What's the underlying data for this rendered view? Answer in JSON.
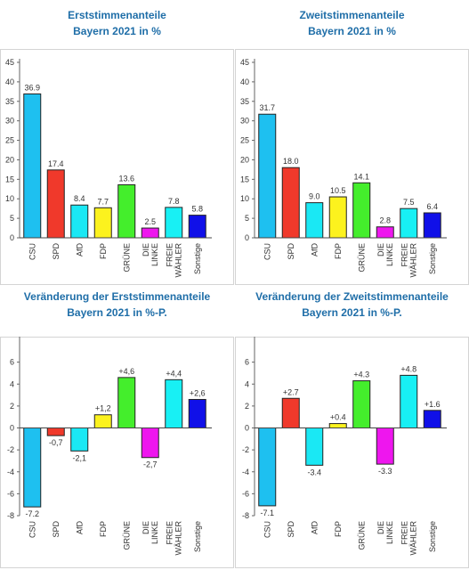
{
  "colors": {
    "title": "#1f6ea8",
    "CSU": "#1ec0f0",
    "SPD": "#f0392b",
    "AfD": "#1ae8f4",
    "FDP": "#fcf21e",
    "GRÜNE": "#44ee2c",
    "DIE LINKE": "#ee16ee",
    "FREIE WÄHLER": "#18f0f4",
    "Sonstige": "#1010e8"
  },
  "chart_data": [
    {
      "type": "bar",
      "title": "Erststimmenanteile",
      "subtitle": "Bayern 2021 in %",
      "categories": [
        "CSU",
        "SPD",
        "AfD",
        "FDP",
        "GRÜNE",
        "DIE LINKE",
        "FREIE WÄHLER",
        "Sonstige"
      ],
      "values": [
        36.9,
        17.4,
        8.4,
        7.7,
        13.6,
        2.5,
        7.8,
        5.8
      ],
      "value_labels": [
        "36.9",
        "17.4",
        "8.4",
        "7.7",
        "13.6",
        "2.5",
        "7.8",
        "5.8"
      ],
      "ylim": [
        0,
        45
      ],
      "yticks": [
        0,
        5,
        10,
        15,
        20,
        25,
        30,
        35,
        40,
        45
      ]
    },
    {
      "type": "bar",
      "title": "Zweitstimmenanteile",
      "subtitle": "Bayern 2021 in %",
      "categories": [
        "CSU",
        "SPD",
        "AfD",
        "FDP",
        "GRÜNE",
        "DIE LINKE",
        "FREIE WÄHLER",
        "Sonstige"
      ],
      "values": [
        31.7,
        18.0,
        9.0,
        10.5,
        14.1,
        2.8,
        7.5,
        6.4
      ],
      "value_labels": [
        "31.7",
        "18.0",
        "9.0",
        "10.5",
        "14.1",
        "2.8",
        "7.5",
        "6.4"
      ],
      "ylim": [
        0,
        45
      ],
      "yticks": [
        0,
        5,
        10,
        15,
        20,
        25,
        30,
        35,
        40,
        45
      ]
    },
    {
      "type": "bar",
      "title": "Veränderung der Erststimmenanteile",
      "subtitle": "Bayern 2021 in %-P.",
      "categories": [
        "CSU",
        "SPD",
        "AfD",
        "FDP",
        "GRÜNE",
        "DIE LINKE",
        "FREIE WÄHLER",
        "Sonstige"
      ],
      "values": [
        -7.2,
        -0.7,
        -2.1,
        1.2,
        4.6,
        -2.7,
        4.4,
        2.6
      ],
      "value_labels": [
        "-7.2",
        "-0,7",
        "-2,1",
        "+1,2",
        "+4,6",
        "-2,7",
        "+4,4",
        "+2,6"
      ],
      "ylim": [
        -8,
        8
      ],
      "yticks": [
        -8,
        -6,
        -4,
        -2,
        0,
        2,
        4,
        6
      ]
    },
    {
      "type": "bar",
      "title": "Veränderung der Zweitstimmenanteile",
      "subtitle": "Bayern 2021 in %-P.",
      "categories": [
        "CSU",
        "SPD",
        "AfD",
        "FDP",
        "GRÜNE",
        "DIE LINKE",
        "FREIE WÄHLER",
        "Sonstige"
      ],
      "values": [
        -7.1,
        2.7,
        -3.4,
        0.4,
        4.3,
        -3.3,
        4.8,
        1.6
      ],
      "value_labels": [
        "-7.1",
        "+2.7",
        "-3.4",
        "+0.4",
        "+4.3",
        "-3.3",
        "+4.8",
        "+1.6"
      ],
      "ylim": [
        -8,
        8
      ],
      "yticks": [
        -8,
        -6,
        -4,
        -2,
        0,
        2,
        4,
        6
      ]
    }
  ]
}
